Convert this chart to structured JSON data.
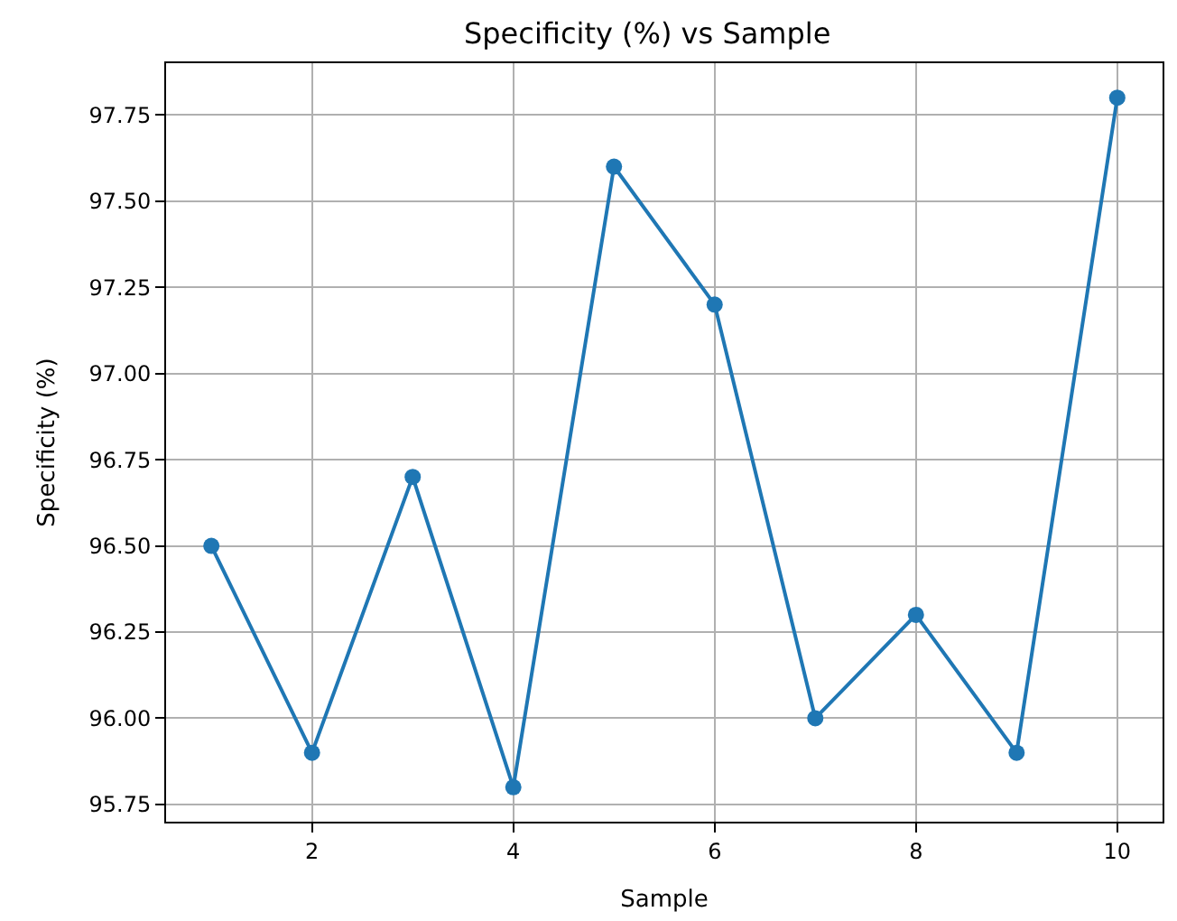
{
  "chart_data": {
    "type": "line",
    "title": "Specificity (%) vs Sample",
    "xlabel": "Sample",
    "ylabel": "Specificity (%)",
    "x": [
      1,
      2,
      3,
      4,
      5,
      6,
      7,
      8,
      9,
      10
    ],
    "series": [
      {
        "color": "#1f77b4",
        "values": [
          96.5,
          95.9,
          96.7,
          95.8,
          97.6,
          97.2,
          96.0,
          96.3,
          95.9,
          97.8
        ]
      }
    ],
    "xlim": [
      0.55,
      10.45
    ],
    "xticks": [
      2,
      4,
      6,
      8,
      10
    ],
    "ylim": [
      95.7,
      97.9
    ],
    "yticks": [
      {
        "value": 95.75,
        "label": "95.75"
      },
      {
        "value": 96.0,
        "label": "96.00"
      },
      {
        "value": 96.25,
        "label": "96.25"
      },
      {
        "value": 96.5,
        "label": "96.50"
      },
      {
        "value": 96.75,
        "label": "96.75"
      },
      {
        "value": 97.0,
        "label": "97.00"
      },
      {
        "value": 97.25,
        "label": "97.25"
      },
      {
        "value": 97.5,
        "label": "97.50"
      },
      {
        "value": 97.75,
        "label": "97.75"
      }
    ],
    "grid": true,
    "marker": "circle",
    "line_style": "solid",
    "legend": false
  }
}
